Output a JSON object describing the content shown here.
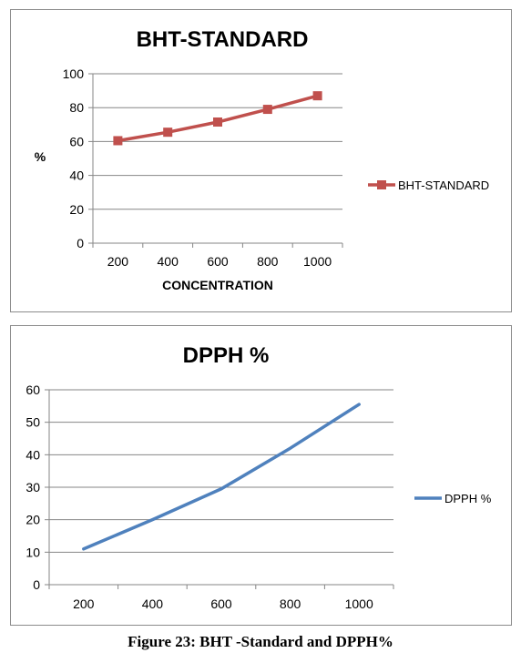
{
  "caption": "Figure 23: BHT -Standard and DPPH%",
  "chart_data": [
    {
      "type": "line",
      "title": "BHT-STANDARD",
      "xlabel": "CONCENTRATION",
      "ylabel": "%",
      "categories": [
        "200",
        "400",
        "600",
        "800",
        "1000"
      ],
      "series": [
        {
          "name": "BHT-STANDARD",
          "values": [
            60.5,
            65.5,
            71.5,
            79,
            87
          ],
          "color": "#c0504d",
          "marker": "square"
        }
      ],
      "ylim": [
        0,
        100
      ],
      "yticks": [
        0,
        20,
        40,
        60,
        80,
        100
      ],
      "grid": true,
      "legend": "right"
    },
    {
      "type": "line",
      "title": "DPPH %",
      "xlabel": "",
      "ylabel": "",
      "categories": [
        "200",
        "400",
        "600",
        "800",
        "1000"
      ],
      "series": [
        {
          "name": "DPPH %",
          "values": [
            11,
            20,
            29.5,
            42,
            55.5
          ],
          "color": "#4f81bd",
          "marker": "none"
        }
      ],
      "ylim": [
        0,
        60
      ],
      "yticks": [
        0,
        10,
        20,
        30,
        40,
        50,
        60
      ],
      "grid": true,
      "legend": "right"
    }
  ]
}
